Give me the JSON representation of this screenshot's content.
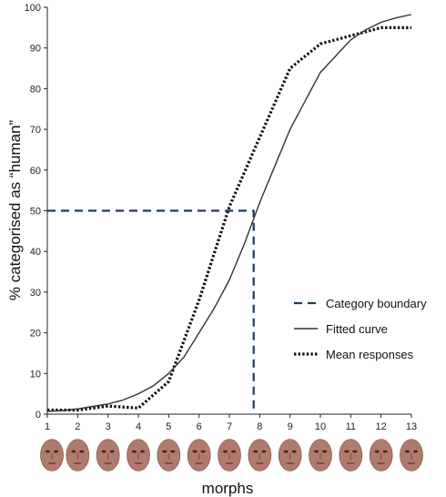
{
  "chart_data": {
    "type": "line",
    "title": "",
    "xlabel": "morphs",
    "ylabel": "% categorised as “human”",
    "xlim": [
      1,
      13
    ],
    "ylim": [
      0,
      100
    ],
    "x_ticks": [
      1,
      2,
      3,
      4,
      5,
      6,
      7,
      8,
      9,
      10,
      11,
      12,
      13
    ],
    "y_ticks": [
      0,
      10,
      20,
      30,
      40,
      50,
      60,
      70,
      80,
      90,
      100
    ],
    "x_tick_labels": [
      "1",
      "2",
      "3",
      "4",
      "5",
      "6",
      "7",
      "8",
      "9",
      "10",
      "11",
      "12",
      "13"
    ],
    "y_tick_labels": [
      "0",
      "10",
      "20",
      "30",
      "40",
      "50",
      "60",
      "70",
      "80",
      "90",
      "100"
    ],
    "grid": false,
    "legend_position": "bottom-right",
    "series": [
      {
        "name": "Mean responses",
        "style": "dotted",
        "color": "#111111",
        "x": [
          1,
          2,
          3,
          4,
          5,
          6,
          7,
          8,
          9,
          10,
          11,
          12,
          13
        ],
        "y": [
          1,
          1,
          2,
          1.5,
          8,
          28,
          51,
          68,
          85,
          91,
          93,
          95,
          95
        ]
      },
      {
        "name": "Fitted curve",
        "style": "solid",
        "color": "#333333",
        "x": [
          1,
          1.5,
          2,
          2.5,
          3,
          3.5,
          4,
          4.5,
          5,
          5.5,
          6,
          6.5,
          7,
          7.5,
          8,
          8.5,
          9,
          9.5,
          10,
          10.5,
          11,
          11.5,
          12,
          12.5,
          13
        ],
        "y": [
          0.7,
          0.9,
          1.3,
          1.9,
          2.5,
          3.5,
          5,
          7,
          10,
          14,
          20,
          26,
          33,
          42,
          52,
          61,
          70,
          77,
          84,
          88,
          92,
          94.5,
          96.3,
          97.4,
          98.2
        ]
      },
      {
        "name": "Category boundary",
        "style": "dashed",
        "color": "#1f3a5f",
        "x": [
          1,
          7.8,
          7.8
        ],
        "y": [
          50,
          50,
          0
        ]
      }
    ],
    "legend": [
      {
        "name": "Category boundary",
        "style": "dashed",
        "color": "#1f3a5f"
      },
      {
        "name": "Fitted curve",
        "style": "solid",
        "color": "#333333"
      },
      {
        "name": "Mean responses",
        "style": "dotted",
        "color": "#111111"
      }
    ],
    "face_images": [
      "face-1",
      "face-2",
      "face-3",
      "face-4",
      "face-5",
      "face-6",
      "face-7",
      "face-8",
      "face-9",
      "face-10",
      "face-11",
      "face-12",
      "face-13"
    ],
    "face_color": "#b07a6c"
  }
}
